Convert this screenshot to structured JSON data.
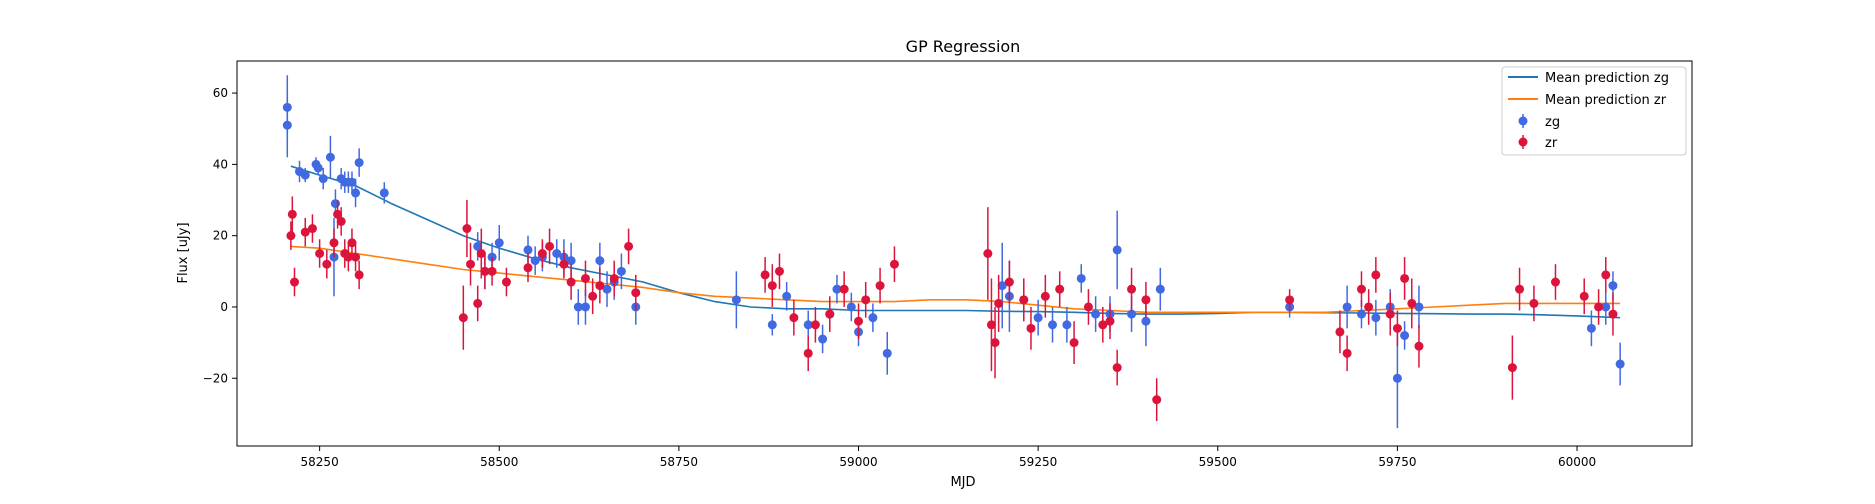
{
  "chart_data": {
    "type": "scatter",
    "title": "GP Regression",
    "xlabel": "MJD",
    "ylabel": "Flux [uJy]",
    "xlim": [
      58135,
      60160
    ],
    "ylim": [
      -39,
      69
    ],
    "xticks": [
      58250,
      58500,
      58750,
      59000,
      59250,
      59500,
      59750,
      60000
    ],
    "yticks": [
      -20,
      0,
      20,
      40,
      60
    ],
    "legend_position": "upper right",
    "grid": false,
    "series": [
      {
        "name": "Mean prediction zg",
        "kind": "line",
        "color": "#1f77b4",
        "x": [
          58210,
          58250,
          58300,
          58350,
          58400,
          58450,
          58500,
          58550,
          58600,
          58650,
          58700,
          58750,
          58800,
          58850,
          58900,
          58950,
          59000,
          59050,
          59100,
          59150,
          59200,
          59250,
          59300,
          59350,
          59400,
          59450,
          59500,
          59550,
          59600,
          59650,
          59700,
          59750,
          59800,
          59850,
          59900,
          59950,
          60000,
          60060
        ],
        "y": [
          39.5,
          37,
          34,
          29,
          24.5,
          20,
          16.5,
          13.5,
          11,
          9,
          7,
          4,
          1.5,
          0,
          -0.5,
          -0.5,
          -1,
          -1,
          -1,
          -1,
          -1.2,
          -1.3,
          -1.5,
          -1.8,
          -2,
          -2,
          -1.8,
          -1.5,
          -1.5,
          -1.6,
          -1.7,
          -1.8,
          -1.9,
          -2,
          -2,
          -2.2,
          -2.5,
          -3
        ]
      },
      {
        "name": "Mean prediction zr",
        "kind": "line",
        "color": "#ff7f0e",
        "x": [
          58210,
          58250,
          58300,
          58350,
          58400,
          58450,
          58500,
          58550,
          58600,
          58650,
          58700,
          58750,
          58800,
          58850,
          58900,
          58950,
          59000,
          59050,
          59100,
          59150,
          59200,
          59250,
          59300,
          59350,
          59400,
          59450,
          59500,
          59550,
          59600,
          59650,
          59700,
          59750,
          59800,
          59850,
          59900,
          59950,
          60000,
          60060
        ],
        "y": [
          17,
          16.5,
          15,
          13.5,
          12,
          10.5,
          9.5,
          8.5,
          7.5,
          6.5,
          5.5,
          4,
          3,
          2.5,
          2,
          1.5,
          1.5,
          1.5,
          2,
          2,
          1.5,
          0.5,
          -0.5,
          -1,
          -1.5,
          -1.5,
          -1.5,
          -1.5,
          -1.5,
          -1.5,
          -1,
          -0.5,
          0,
          0.5,
          1,
          1,
          1,
          1
        ]
      },
      {
        "name": "zg",
        "kind": "errorbar",
        "color": "#4169e1",
        "x": [
          58205,
          58205,
          58222,
          58230,
          58245,
          58248,
          58255,
          58265,
          58270,
          58272,
          58280,
          58285,
          58290,
          58295,
          58300,
          58305,
          58340,
          58470,
          58480,
          58490,
          58500,
          58540,
          58550,
          58560,
          58580,
          58590,
          58600,
          58610,
          58620,
          58640,
          58650,
          58660,
          58670,
          58690,
          58830,
          58880,
          58900,
          58930,
          58950,
          58960,
          58970,
          58990,
          59000,
          59020,
          59040,
          59200,
          59210,
          59230,
          59250,
          59270,
          59290,
          59310,
          59330,
          59350,
          59360,
          59380,
          59400,
          59420,
          59600,
          59680,
          59700,
          59720,
          59740,
          59750,
          59760,
          59780,
          60020,
          60040,
          60050,
          60060
        ],
        "y": [
          56,
          51,
          38,
          37,
          40,
          39,
          36,
          42,
          14,
          29,
          36,
          35,
          35,
          35,
          32,
          40.5,
          32,
          17,
          10,
          14,
          18,
          16,
          13,
          14,
          15,
          14,
          13,
          0,
          0,
          13,
          5,
          7,
          10,
          0,
          2,
          -5,
          3,
          -5,
          -9,
          -2,
          5,
          0,
          -7,
          -3,
          -13,
          6,
          3,
          2,
          -3,
          -5,
          -5,
          8,
          -2,
          -2,
          16,
          -2,
          -4,
          5,
          0,
          0,
          -2,
          -3,
          0,
          -20,
          -8,
          0,
          -6,
          0,
          6,
          -16
        ],
        "err": [
          9,
          9,
          3,
          2,
          2,
          2,
          3,
          6,
          11,
          4,
          3,
          3,
          3,
          3,
          4,
          4,
          3,
          4,
          5,
          4,
          5,
          4,
          4,
          4,
          4,
          5,
          5,
          5,
          5,
          5,
          5,
          5,
          5,
          5,
          8,
          3,
          4,
          4,
          4,
          4,
          4,
          4,
          4,
          4,
          6,
          12,
          10,
          6,
          5,
          5,
          5,
          4,
          5,
          5,
          11,
          5,
          7,
          6,
          3,
          6,
          4,
          5,
          5,
          14,
          4,
          6,
          5,
          5,
          4,
          6
        ]
      },
      {
        "name": "zr",
        "kind": "errorbar",
        "color": "#dc143c",
        "x": [
          58210,
          58212,
          58215,
          58230,
          58240,
          58250,
          58260,
          58270,
          58275,
          58280,
          58285,
          58290,
          58295,
          58300,
          58305,
          58450,
          58455,
          58460,
          58470,
          58475,
          58480,
          58490,
          58510,
          58540,
          58560,
          58570,
          58590,
          58600,
          58620,
          58630,
          58640,
          58660,
          58680,
          58690,
          58870,
          58880,
          58890,
          58910,
          58930,
          58940,
          58960,
          58980,
          59000,
          59010,
          59030,
          59050,
          59180,
          59185,
          59190,
          59195,
          59210,
          59230,
          59240,
          59260,
          59280,
          59300,
          59320,
          59340,
          59350,
          59360,
          59380,
          59400,
          59415,
          59600,
          59670,
          59680,
          59700,
          59710,
          59720,
          59740,
          59750,
          59760,
          59770,
          59780,
          59910,
          59920,
          59940,
          59970,
          60010,
          60030,
          60040,
          60050
        ],
        "y": [
          20,
          26,
          7,
          21,
          22,
          15,
          12,
          18,
          26,
          24,
          15,
          14,
          18,
          14,
          9,
          -3,
          22,
          12,
          1,
          15,
          10,
          10,
          7,
          11,
          15,
          17,
          12,
          7,
          8,
          3,
          6,
          8,
          17,
          4,
          9,
          6,
          10,
          -3,
          -13,
          -5,
          -2,
          5,
          -4,
          2,
          6,
          12,
          15,
          -5,
          -10,
          1,
          7,
          2,
          -6,
          3,
          5,
          -10,
          0,
          -5,
          -4,
          -17,
          5,
          2,
          -26,
          2,
          -7,
          -13,
          5,
          0,
          9,
          -2,
          -6,
          8,
          1,
          -11,
          -17,
          5,
          1,
          7,
          3,
          0,
          9,
          -2
        ],
        "err": [
          4,
          5,
          4,
          4,
          4,
          4,
          4,
          4,
          4,
          4,
          4,
          4,
          4,
          4,
          4,
          9,
          8,
          6,
          5,
          7,
          5,
          4,
          4,
          4,
          4,
          5,
          4,
          5,
          5,
          5,
          5,
          5,
          5,
          5,
          5,
          6,
          5,
          5,
          5,
          5,
          5,
          5,
          5,
          5,
          5,
          5,
          13,
          13,
          10,
          8,
          6,
          6,
          6,
          6,
          5,
          6,
          5,
          5,
          5,
          5,
          6,
          5,
          6,
          3,
          6,
          5,
          5,
          5,
          5,
          6,
          5,
          6,
          7,
          6,
          9,
          6,
          5,
          5,
          5,
          5,
          5,
          6
        ]
      }
    ]
  }
}
